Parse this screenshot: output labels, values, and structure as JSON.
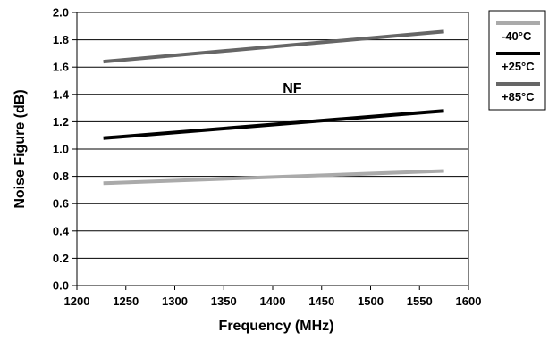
{
  "chart_data": {
    "type": "line",
    "title": "",
    "xlabel": "Frequency (MHz)",
    "ylabel": "Noise Figure (dB)",
    "xlim": [
      1200,
      1600
    ],
    "ylim": [
      0.0,
      2.0
    ],
    "xticks": [
      1200,
      1250,
      1300,
      1350,
      1400,
      1450,
      1500,
      1550,
      1600
    ],
    "yticks": [
      "0.0",
      "0.2",
      "0.4",
      "0.6",
      "0.8",
      "1.0",
      "1.2",
      "1.4",
      "1.6",
      "1.8",
      "2.0"
    ],
    "grid": "horizontal",
    "legend_position": "right",
    "annotations": [
      {
        "text": "NF",
        "x": 1420,
        "y": 1.45
      }
    ],
    "series": [
      {
        "name": "-40°C",
        "color": "#aaaaaa",
        "x": [
          1227,
          1575
        ],
        "y": [
          0.75,
          0.84
        ]
      },
      {
        "name": "+25°C",
        "color": "#000000",
        "x": [
          1227,
          1575
        ],
        "y": [
          1.08,
          1.28
        ]
      },
      {
        "name": "+85°C",
        "color": "#666666",
        "x": [
          1227,
          1575
        ],
        "y": [
          1.64,
          1.86
        ]
      }
    ]
  }
}
